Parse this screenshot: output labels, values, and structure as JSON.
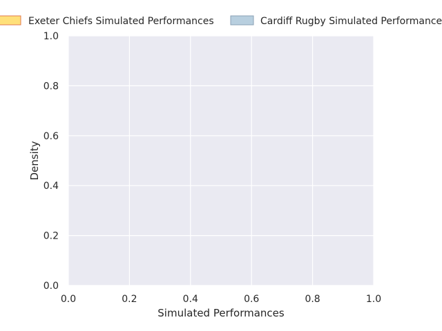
{
  "chart_data": {
    "type": "area",
    "title": "",
    "xlabel": "Simulated Performances",
    "ylabel": "Density",
    "xlim": [
      0.0,
      1.0
    ],
    "ylim": [
      0.0,
      1.0
    ],
    "xticks": [
      "0.0",
      "0.2",
      "0.4",
      "0.6",
      "0.8",
      "1.0"
    ],
    "yticks": [
      "0.0",
      "0.2",
      "0.4",
      "0.6",
      "0.8",
      "1.0"
    ],
    "grid": true,
    "legend_position": "top-center",
    "series": [
      {
        "name": "Exeter Chiefs Simulated Performances",
        "values": [],
        "fill": "#ffe07a",
        "edge": "#e07a50"
      },
      {
        "name": "Cardiff Rugby Simulated Performances",
        "values": [],
        "fill": "#b8cfdf",
        "edge": "#8aa0b4"
      }
    ],
    "plot_background": "#eaeaf2",
    "grid_color": "#ffffff"
  }
}
